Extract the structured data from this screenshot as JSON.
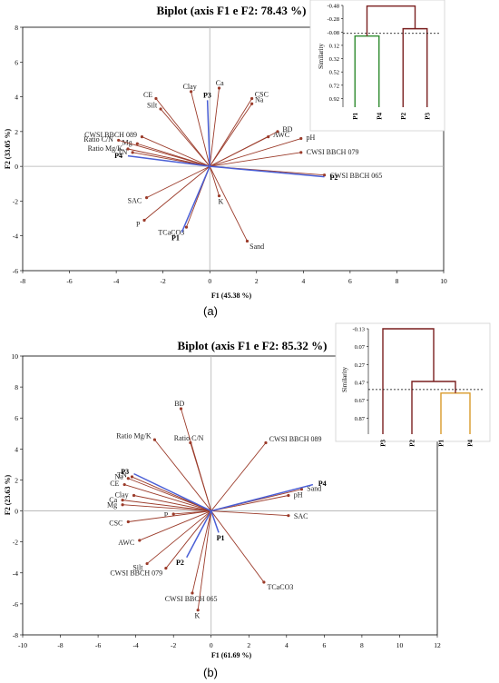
{
  "panels": [
    {
      "caption": "(a)",
      "biplot": {
        "title": "Biplot (axis F1 e F2: 78.43 %)",
        "xlabel": "F1 (45.38 %)",
        "ylabel": "F2 (33.05 %)"
      },
      "dendrogram": {
        "ylabel": "Similarity"
      }
    },
    {
      "caption": "(b)",
      "biplot": {
        "title": "Biplot (axis F1 e F2: 85.32 %)",
        "xlabel": "F1 (61.69 %)",
        "ylabel": "F2 (23.63 %)"
      },
      "dendrogram": {
        "ylabel": "Similarity"
      }
    }
  ],
  "colors": {
    "variable_vector": "#9b3b2a",
    "observation_vector": "#4a5fd6",
    "dendro_branch": "#7a1f1f",
    "dendro_green": "#2e8b2e",
    "dendro_orange": "#d89a2a",
    "axis": "#000000",
    "zero_line": "#b0b0b0"
  },
  "chart_data": [
    {
      "type": "scatter",
      "subtype": "pca-biplot",
      "title": "Biplot (axis F1 e F2: 78.43 %)",
      "xlabel": "F1 (45.38 %)",
      "ylabel": "F2 (33.05 %)",
      "xlim": [
        -8,
        10
      ],
      "ylim": [
        -6,
        8
      ],
      "xticks": [
        -8,
        -6,
        -4,
        -2,
        0,
        2,
        4,
        6,
        8,
        10
      ],
      "yticks": [
        -6,
        -4,
        -2,
        0,
        2,
        4,
        6,
        8
      ],
      "variables": [
        {
          "name": "Ca",
          "x": 0.4,
          "y": 4.5
        },
        {
          "name": "CSC",
          "x": 1.8,
          "y": 3.9
        },
        {
          "name": "Na",
          "x": 1.8,
          "y": 3.6
        },
        {
          "name": "Clay",
          "x": -0.8,
          "y": 4.3
        },
        {
          "name": "CE",
          "x": -2.3,
          "y": 3.9
        },
        {
          "name": "Silt",
          "x": -2.1,
          "y": 3.3
        },
        {
          "name": "BD",
          "x": 2.9,
          "y": 2.0
        },
        {
          "name": "AWC",
          "x": 2.5,
          "y": 1.7
        },
        {
          "name": "pH",
          "x": 3.9,
          "y": 1.6
        },
        {
          "name": "CWSI BBCH 079",
          "x": 3.9,
          "y": 0.8
        },
        {
          "name": "CWSI BBCH 089",
          "x": -2.9,
          "y": 1.7
        },
        {
          "name": "Mg",
          "x": -3.1,
          "y": 1.3
        },
        {
          "name": "Ratio C/N",
          "x": -3.9,
          "y": 1.5
        },
        {
          "name": "TN",
          "x": -3.3,
          "y": 0.8
        },
        {
          "name": "Ratio Mg/K",
          "x": -3.5,
          "y": 1.0
        },
        {
          "name": "CWSI BBCH 065",
          "x": 4.9,
          "y": -0.5
        },
        {
          "name": "K",
          "x": 0.4,
          "y": -1.7
        },
        {
          "name": "SAC",
          "x": -2.7,
          "y": -1.8
        },
        {
          "name": "P",
          "x": -2.8,
          "y": -3.1
        },
        {
          "name": "TCaCO3",
          "x": -1.0,
          "y": -3.5
        },
        {
          "name": "Sand",
          "x": 1.6,
          "y": -4.3
        }
      ],
      "observations": [
        {
          "name": "P3",
          "x": -0.1,
          "y": 3.8
        },
        {
          "name": "P4",
          "x": -3.5,
          "y": 0.6
        },
        {
          "name": "P2",
          "x": 4.9,
          "y": -0.6
        },
        {
          "name": "P1",
          "x": -1.2,
          "y": -3.8
        }
      ]
    },
    {
      "type": "dendrogram",
      "ylabel": "Similarity",
      "yticks": [
        -0.48,
        -0.28,
        -0.08,
        0.12,
        0.32,
        0.52,
        0.72,
        0.92
      ],
      "ylim": [
        -0.48,
        1.05
      ],
      "leaves": [
        "P1",
        "P4",
        "P2",
        "P3"
      ],
      "merges": [
        {
          "left": "P1",
          "right": "P4",
          "height": -0.02
        },
        {
          "left": "P2",
          "right": "P3",
          "height": -0.13
        },
        {
          "left": "P1-P4",
          "right": "P2-P3",
          "height": -0.47
        }
      ],
      "cut_level": -0.06
    },
    {
      "type": "scatter",
      "subtype": "pca-biplot",
      "title": "Biplot (axis F1 e F2: 85.32 %)",
      "xlabel": "F1 (61.69 %)",
      "ylabel": "F2 (23.63 %)",
      "xlim": [
        -10,
        12
      ],
      "ylim": [
        -8,
        10
      ],
      "xticks": [
        -10,
        -8,
        -6,
        -4,
        -2,
        0,
        2,
        4,
        6,
        8,
        10,
        12
      ],
      "yticks": [
        -8,
        -6,
        -4,
        -2,
        0,
        2,
        4,
        6,
        8,
        10
      ],
      "variables": [
        {
          "name": "BD",
          "x": -1.6,
          "y": 6.6
        },
        {
          "name": "Ratio Mg/K",
          "x": -3.0,
          "y": 4.6
        },
        {
          "name": "Ratio C/N",
          "x": -1.1,
          "y": 4.4
        },
        {
          "name": "CWSI BBCH 089",
          "x": 2.9,
          "y": 4.4
        },
        {
          "name": "TN",
          "x": -4.2,
          "y": 2.2
        },
        {
          "name": "Na",
          "x": -4.4,
          "y": 2.1
        },
        {
          "name": "CE",
          "x": -4.6,
          "y": 1.7
        },
        {
          "name": "Clay",
          "x": -4.1,
          "y": 1.0
        },
        {
          "name": "Ca",
          "x": -4.7,
          "y": 0.7
        },
        {
          "name": "Mg",
          "x": -4.7,
          "y": 0.4
        },
        {
          "name": "P",
          "x": -2.0,
          "y": -0.2
        },
        {
          "name": "CSC",
          "x": -4.4,
          "y": -0.7
        },
        {
          "name": "AWC",
          "x": -3.8,
          "y": -1.9
        },
        {
          "name": "Silt",
          "x": -3.4,
          "y": -3.4
        },
        {
          "name": "CWSI BBCH 079",
          "x": -2.4,
          "y": -3.7
        },
        {
          "name": "CWSI BBCH 065",
          "x": -1.0,
          "y": -5.3
        },
        {
          "name": "K",
          "x": -0.7,
          "y": -6.4
        },
        {
          "name": "TCaCO3",
          "x": 2.8,
          "y": -4.6
        },
        {
          "name": "Sand",
          "x": 4.8,
          "y": 1.4
        },
        {
          "name": "pH",
          "x": 4.1,
          "y": 1.0
        },
        {
          "name": "SAC",
          "x": 4.1,
          "y": -0.3
        }
      ],
      "observations": [
        {
          "name": "P3",
          "x": -4.1,
          "y": 2.4
        },
        {
          "name": "P4",
          "x": 5.4,
          "y": 1.7
        },
        {
          "name": "P1",
          "x": 0.4,
          "y": -1.4
        },
        {
          "name": "P2",
          "x": -1.3,
          "y": -3.0
        }
      ]
    },
    {
      "type": "dendrogram",
      "ylabel": "Similarity",
      "yticks": [
        -0.13,
        0.07,
        0.27,
        0.47,
        0.67,
        0.87
      ],
      "ylim": [
        -0.13,
        1.05
      ],
      "leaves": [
        "P3",
        "P2",
        "P1",
        "P4"
      ],
      "merges": [
        {
          "left": "P1",
          "right": "P4",
          "height": 0.59
        },
        {
          "left": "P2",
          "right": "P1-P4",
          "height": 0.46
        },
        {
          "left": "P3",
          "right": "P2-P1-P4",
          "height": -0.13
        }
      ],
      "cut_level": 0.55
    }
  ]
}
